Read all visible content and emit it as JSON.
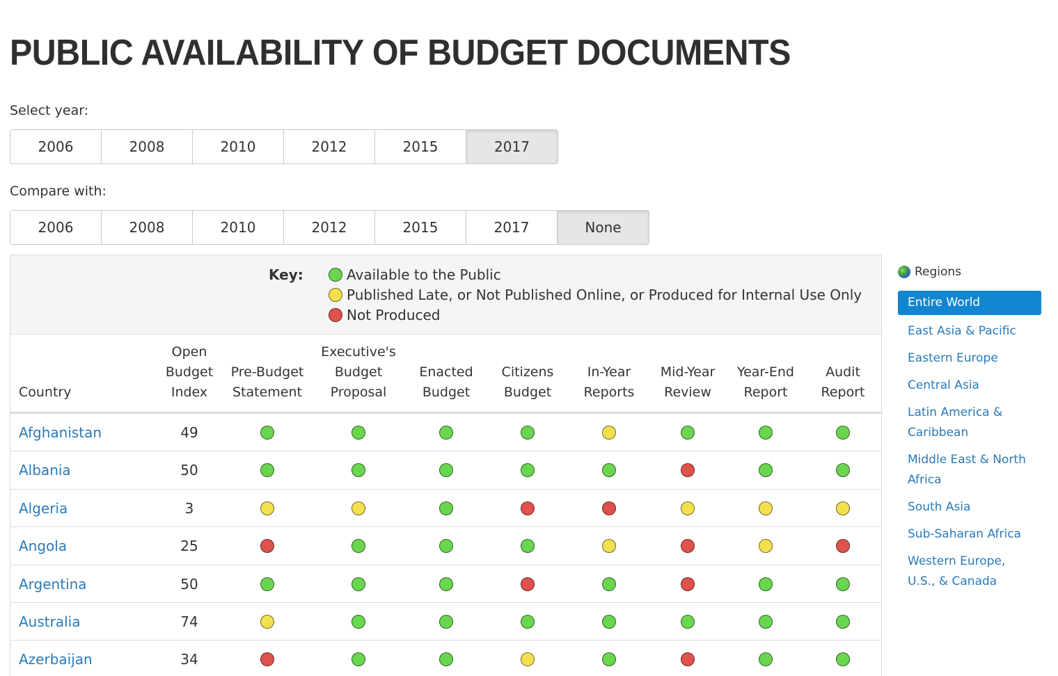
{
  "title": "PUBLIC AVAILABILITY OF BUDGET DOCUMENTS",
  "select_year": {
    "label": "Select year:",
    "options": [
      "2006",
      "2008",
      "2010",
      "2012",
      "2015",
      "2017"
    ],
    "selected": "2017"
  },
  "compare_with": {
    "label": "Compare with:",
    "options": [
      "2006",
      "2008",
      "2010",
      "2012",
      "2015",
      "2017",
      "None"
    ],
    "selected": "None"
  },
  "colors": {
    "green": "#6ad64f",
    "yellow": "#f4e04d",
    "red": "#e0524b",
    "link": "#2a7ab8",
    "region_active_bg": "#1186d0"
  },
  "key": {
    "label": "Key:",
    "items": [
      {
        "status": "green",
        "text": "Available to the Public"
      },
      {
        "status": "yellow",
        "text": "Published Late, or Not Published Online, or Produced for Internal Use Only"
      },
      {
        "status": "red",
        "text": "Not Produced"
      }
    ]
  },
  "table": {
    "columns": [
      "Country",
      "Open\nBudget\nIndex",
      "Pre-Budget\nStatement",
      "Executive's\nBudget\nProposal",
      "Enacted\nBudget",
      "Citizens\nBudget",
      "In-Year\nReports",
      "Mid-Year\nReview",
      "Year-End\nReport",
      "Audit\nReport"
    ],
    "rows": [
      {
        "country": "Afghanistan",
        "obi": "49",
        "statuses": [
          "green",
          "green",
          "green",
          "green",
          "yellow",
          "green",
          "green",
          "green"
        ]
      },
      {
        "country": "Albania",
        "obi": "50",
        "statuses": [
          "green",
          "green",
          "green",
          "green",
          "green",
          "red",
          "green",
          "green"
        ]
      },
      {
        "country": "Algeria",
        "obi": "3",
        "statuses": [
          "yellow",
          "yellow",
          "green",
          "red",
          "red",
          "yellow",
          "yellow",
          "yellow"
        ]
      },
      {
        "country": "Angola",
        "obi": "25",
        "statuses": [
          "red",
          "green",
          "green",
          "green",
          "yellow",
          "red",
          "yellow",
          "red"
        ]
      },
      {
        "country": "Argentina",
        "obi": "50",
        "statuses": [
          "green",
          "green",
          "green",
          "red",
          "green",
          "red",
          "green",
          "green"
        ]
      },
      {
        "country": "Australia",
        "obi": "74",
        "statuses": [
          "yellow",
          "green",
          "green",
          "green",
          "green",
          "green",
          "green",
          "green"
        ]
      },
      {
        "country": "Azerbaijan",
        "obi": "34",
        "statuses": [
          "red",
          "green",
          "green",
          "yellow",
          "green",
          "red",
          "green",
          "green"
        ]
      }
    ]
  },
  "regions": {
    "header": "Regions",
    "icon": "globe-icon",
    "items": [
      "Entire World",
      "East Asia & Pacific",
      "Eastern Europe",
      "Central Asia",
      "Latin America & Caribbean",
      "Middle East & North Africa",
      "South Asia",
      "Sub-Saharan Africa",
      "Western Europe, U.S., & Canada"
    ],
    "selected": "Entire World"
  }
}
